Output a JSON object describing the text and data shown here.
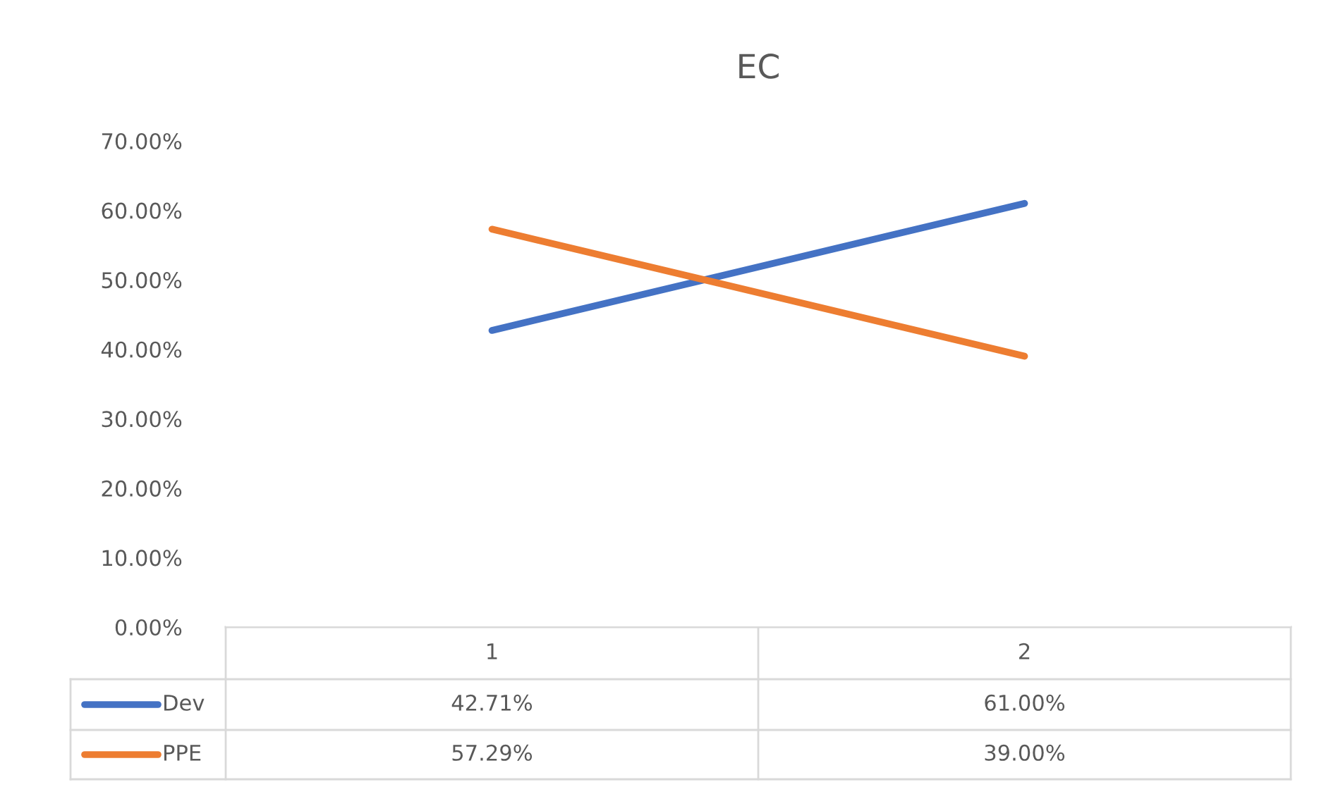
{
  "chart_data": {
    "type": "line",
    "title": "EC",
    "categories": [
      "1",
      "2"
    ],
    "series": [
      {
        "name": "Dev",
        "color": "#4472c4",
        "values": [
          42.71,
          61.0
        ],
        "value_labels": [
          "42.71%",
          "61.00%"
        ]
      },
      {
        "name": "PPE",
        "color": "#ed7d31",
        "values": [
          57.29,
          39.0
        ],
        "value_labels": [
          "57.29%",
          "39.00%"
        ]
      }
    ],
    "ylim": [
      0,
      70
    ],
    "yticks": [
      {
        "value": 0,
        "label": "0.00%"
      },
      {
        "value": 10,
        "label": "10.00%"
      },
      {
        "value": 20,
        "label": "20.00%"
      },
      {
        "value": 30,
        "label": "30.00%"
      },
      {
        "value": 40,
        "label": "40.00%"
      },
      {
        "value": 50,
        "label": "50.00%"
      },
      {
        "value": 60,
        "label": "60.00%"
      },
      {
        "value": 70,
        "label": "70.00%"
      }
    ],
    "grid": false,
    "legend": "bottom",
    "marker": "none",
    "line_style": "solid"
  }
}
